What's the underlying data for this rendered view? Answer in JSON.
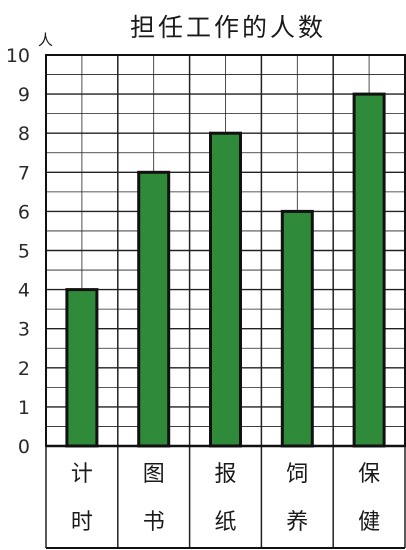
{
  "chart_data": {
    "type": "bar",
    "title": "担任工作的人数",
    "ylabel": "人",
    "xlabel": "",
    "categories": [
      "计时",
      "图书",
      "报纸",
      "饲养",
      "保健"
    ],
    "values": [
      4,
      7,
      8,
      6,
      9
    ],
    "ylim": [
      0,
      10
    ],
    "yticks": [
      "0",
      "1",
      "2",
      "3",
      "4",
      "5",
      "6",
      "7",
      "8",
      "9",
      "10"
    ],
    "grid": true,
    "bar_color": "#2f8a3a",
    "bar_edge_color": "#111111",
    "grid_color": "#222222"
  }
}
